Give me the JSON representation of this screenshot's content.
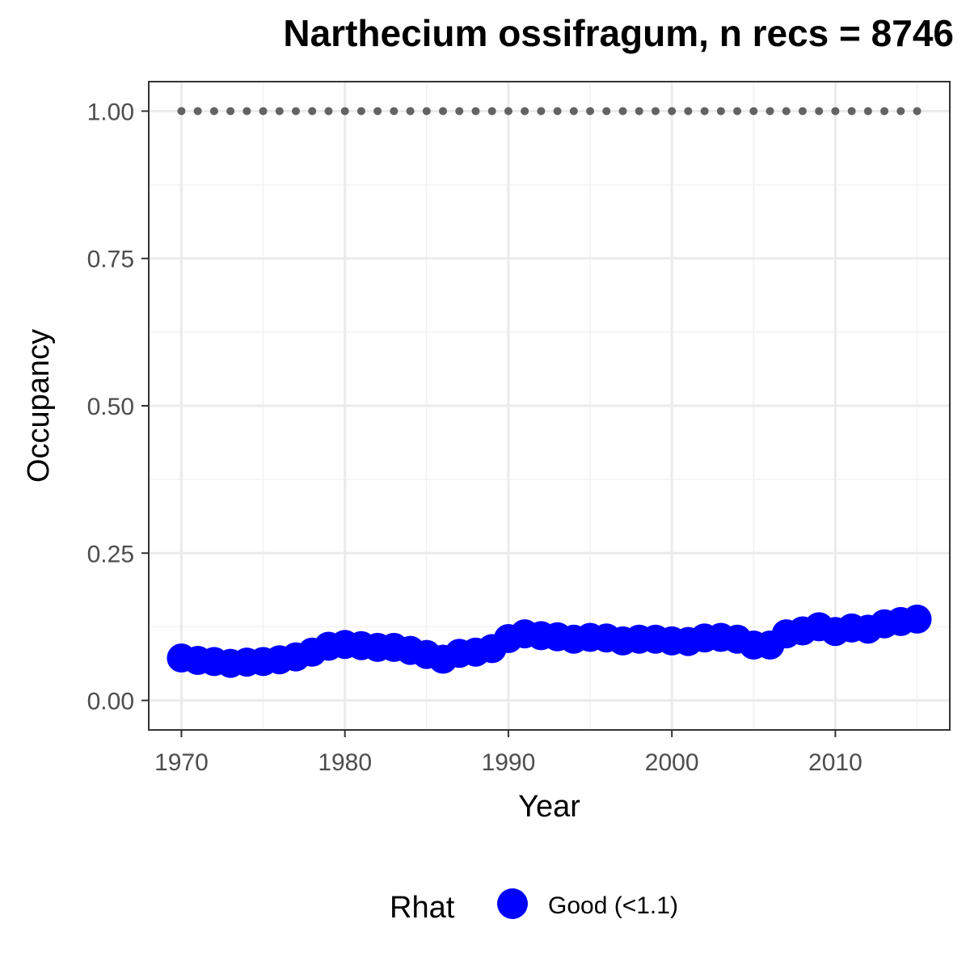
{
  "chart_data": {
    "type": "scatter",
    "title": "Narthecium ossifragum, n recs = 8746",
    "xlabel": "Year",
    "ylabel": "Occupancy",
    "xlim": [
      1968,
      2017
    ],
    "ylim": [
      -0.05,
      1.05
    ],
    "x_ticks": [
      1970,
      1980,
      1990,
      2000,
      2010
    ],
    "x_tick_labels": [
      "1970",
      "1980",
      "1990",
      "2000",
      "2010"
    ],
    "y_ticks": [
      0,
      0.25,
      0.5,
      0.75,
      1.0
    ],
    "y_tick_labels": [
      "0.00",
      "0.25",
      "0.50",
      "0.75",
      "1.00"
    ],
    "grid": true,
    "legend": {
      "title": "Rhat",
      "position": "bottom",
      "entries": [
        {
          "label": "Good (<1.1)",
          "color": "#0000ff"
        }
      ]
    },
    "series": [
      {
        "name": "Good (<1.1)",
        "color": "#0000ff",
        "marker": "large-circle",
        "x": [
          1970,
          1971,
          1972,
          1973,
          1974,
          1975,
          1976,
          1977,
          1978,
          1979,
          1980,
          1981,
          1982,
          1983,
          1984,
          1985,
          1986,
          1987,
          1988,
          1989,
          1990,
          1991,
          1992,
          1993,
          1994,
          1995,
          1996,
          1997,
          1998,
          1999,
          2000,
          2001,
          2002,
          2003,
          2004,
          2005,
          2006,
          2007,
          2008,
          2009,
          2010,
          2011,
          2012,
          2013,
          2014,
          2015
        ],
        "y": [
          0.072,
          0.068,
          0.066,
          0.063,
          0.065,
          0.066,
          0.069,
          0.074,
          0.082,
          0.092,
          0.095,
          0.093,
          0.09,
          0.09,
          0.085,
          0.078,
          0.07,
          0.08,
          0.082,
          0.088,
          0.105,
          0.113,
          0.11,
          0.108,
          0.104,
          0.107,
          0.106,
          0.101,
          0.104,
          0.104,
          0.101,
          0.1,
          0.106,
          0.107,
          0.104,
          0.094,
          0.094,
          0.113,
          0.118,
          0.125,
          0.117,
          0.123,
          0.121,
          0.13,
          0.134,
          0.138
        ]
      },
      {
        "name": "",
        "color": "#636363",
        "marker": "small-dot",
        "x": [
          1970,
          1971,
          1972,
          1973,
          1974,
          1975,
          1976,
          1977,
          1978,
          1979,
          1980,
          1981,
          1982,
          1983,
          1984,
          1985,
          1986,
          1987,
          1988,
          1989,
          1990,
          1991,
          1992,
          1993,
          1994,
          1995,
          1996,
          1997,
          1998,
          1999,
          2000,
          2001,
          2002,
          2003,
          2004,
          2005,
          2006,
          2007,
          2008,
          2009,
          2010,
          2011,
          2012,
          2013,
          2014,
          2015
        ],
        "y": [
          1,
          1,
          1,
          1,
          1,
          1,
          1,
          1,
          1,
          1,
          1,
          1,
          1,
          1,
          1,
          1,
          1,
          1,
          1,
          1,
          1,
          1,
          1,
          1,
          1,
          1,
          1,
          1,
          1,
          1,
          1,
          1,
          1,
          1,
          1,
          1,
          1,
          1,
          1,
          1,
          1,
          1,
          1,
          1,
          1,
          1
        ]
      }
    ]
  }
}
